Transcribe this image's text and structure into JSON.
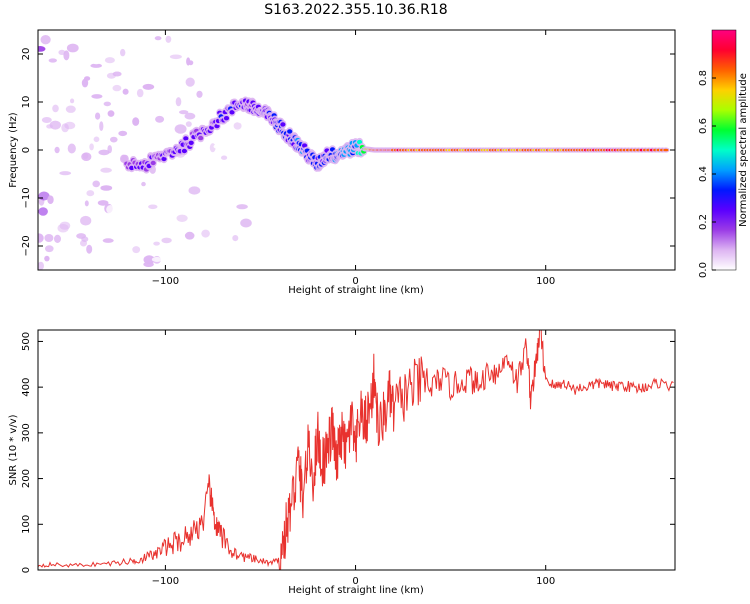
{
  "title": "S163.2022.355.10.36.R18",
  "chart_data": [
    {
      "type": "heatmap",
      "xlabel": "Height of straight line (km)",
      "ylabel": "Frequency (Hz)",
      "xlim": [
        -167,
        168
      ],
      "ylim": [
        -25,
        25
      ],
      "x_ticks": [
        -100,
        0,
        100
      ],
      "y_ticks": [
        -20,
        -10,
        0,
        10,
        20
      ],
      "grid": false,
      "colorbar": {
        "label": "Normalized spectral amplitude",
        "ticks": [
          0.0,
          0.2,
          0.4,
          0.6,
          0.8
        ],
        "range": [
          0,
          1
        ],
        "colors": [
          "#ffffff",
          "#ddb4f2",
          "#9b3ce6",
          "#5a00ff",
          "#0018ff",
          "#00a0ff",
          "#00ffc8",
          "#00ff30",
          "#aaff00",
          "#ffd000",
          "#ff6000",
          "#ff0030",
          "#ff0080"
        ]
      },
      "ridge": {
        "x": [
          -122,
          -110,
          -100,
          -90,
          -80,
          -70,
          -60,
          -55,
          -50,
          -45,
          -40,
          -35,
          -30,
          -25,
          -20,
          -15,
          -10,
          -5,
          0,
          10,
          20,
          40,
          60,
          80,
          100,
          120,
          140,
          165
        ],
        "y": [
          -3,
          -3,
          -1,
          1,
          4,
          7,
          10,
          9,
          8,
          7,
          5,
          3,
          1,
          -1,
          -3,
          -1,
          -1,
          0,
          0.5,
          0,
          0,
          0,
          0,
          0,
          0,
          0,
          0,
          0
        ],
        "amplitude": [
          0.15,
          0.2,
          0.2,
          0.25,
          0.25,
          0.25,
          0.25,
          0.25,
          0.25,
          0.25,
          0.3,
          0.3,
          0.35,
          0.3,
          0.3,
          0.3,
          0.35,
          0.4,
          0.4,
          0.85,
          0.85,
          0.8,
          0.8,
          0.8,
          0.8,
          0.85,
          0.85,
          0.85
        ]
      }
    },
    {
      "type": "line",
      "xlabel": "Height of straight line (km)",
      "ylabel": "SNR (10 * v/v)",
      "xlim": [
        -167,
        168
      ],
      "ylim": [
        0,
        525
      ],
      "x_ticks": [
        -100,
        0,
        100
      ],
      "y_ticks": [
        0,
        100,
        200,
        300,
        400,
        500
      ],
      "grid": false,
      "color": "#e8322e",
      "x": [
        -167,
        -160,
        -150,
        -140,
        -130,
        -120,
        -115,
        -110,
        -105,
        -100,
        -95,
        -90,
        -85,
        -80,
        -77,
        -75,
        -73,
        -70,
        -65,
        -60,
        -55,
        -50,
        -45,
        -40,
        -38,
        -35,
        -32,
        -30,
        -28,
        -25,
        -22,
        -20,
        -18,
        -15,
        -12,
        -10,
        -8,
        -5,
        -2,
        0,
        2,
        5,
        8,
        10,
        12,
        15,
        18,
        20,
        25,
        30,
        35,
        40,
        45,
        50,
        55,
        60,
        65,
        70,
        75,
        80,
        85,
        90,
        92,
        95,
        97,
        100,
        105,
        110,
        115,
        120,
        125,
        130,
        135,
        140,
        145,
        150,
        155,
        160,
        168
      ],
      "y": [
        10,
        12,
        10,
        12,
        14,
        18,
        22,
        28,
        35,
        50,
        60,
        70,
        85,
        110,
        180,
        130,
        90,
        70,
        40,
        30,
        25,
        20,
        15,
        20,
        60,
        120,
        180,
        240,
        160,
        260,
        200,
        300,
        230,
        260,
        310,
        220,
        300,
        260,
        330,
        250,
        340,
        320,
        360,
        430,
        300,
        340,
        380,
        350,
        380,
        400,
        410,
        400,
        420,
        400,
        410,
        420,
        400,
        440,
        430,
        470,
        410,
        490,
        380,
        450,
        530,
        420,
        400,
        410,
        395,
        400,
        405,
        410,
        400,
        405,
        400,
        398,
        405,
        410,
        400
      ]
    }
  ]
}
